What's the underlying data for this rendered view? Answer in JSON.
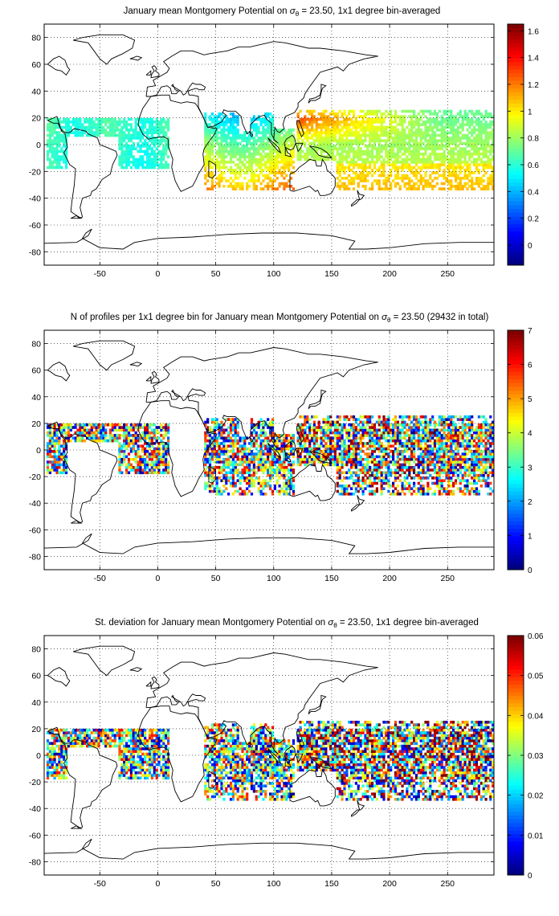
{
  "figure": {
    "background": "#ffffff",
    "colormap": "jet"
  },
  "chart_data": [
    {
      "type": "heatmap",
      "title_pre": "January mean Montgomery Potential on ",
      "title_symbol": "σ",
      "title_sub": "θ",
      "title_post": " = 23.50, 1x1 degree bin-averaged",
      "xlabel": "",
      "ylabel": "",
      "xlim": [
        -98,
        290
      ],
      "ylim": [
        -90,
        90
      ],
      "x_ticks": [
        -50,
        0,
        50,
        100,
        150,
        200,
        250
      ],
      "x_tick_labels": [
        "-50",
        "0",
        "50",
        "100",
        "150",
        "200",
        "250"
      ],
      "y_ticks": [
        -80,
        -60,
        -40,
        -20,
        0,
        20,
        40,
        60,
        80
      ],
      "y_tick_labels": [
        "-80",
        "-60",
        "-40",
        "-20",
        "0",
        "20",
        "40",
        "60",
        "80"
      ],
      "grid": true,
      "colorbar": {
        "clim": [
          -0.15,
          1.65
        ],
        "ticks": [
          0,
          0.2,
          0.4,
          0.6,
          0.8,
          1,
          1.2,
          1.4,
          1.6
        ],
        "tick_labels": [
          "0",
          "0.2",
          "0.4",
          "0.6",
          "0.8",
          "1",
          "1.2",
          "1.4",
          "1.6"
        ]
      },
      "field": "montgomery_potential"
    },
    {
      "type": "heatmap",
      "title_pre": "N of profiles per 1x1 degree bin for January mean Montgomery Potential on ",
      "title_symbol": "σ",
      "title_sub": "θ",
      "title_post": " = 23.50 (29432 in total)",
      "total_profiles": 29432,
      "xlabel": "",
      "ylabel": "",
      "xlim": [
        -98,
        290
      ],
      "ylim": [
        -90,
        90
      ],
      "x_ticks": [
        -50,
        0,
        50,
        100,
        150,
        200,
        250
      ],
      "x_tick_labels": [
        "-50",
        "0",
        "50",
        "100",
        "150",
        "200",
        "250"
      ],
      "y_ticks": [
        -80,
        -60,
        -40,
        -20,
        0,
        20,
        40,
        60,
        80
      ],
      "y_tick_labels": [
        "-80",
        "-60",
        "-40",
        "-20",
        "0",
        "20",
        "40",
        "60",
        "80"
      ],
      "grid": true,
      "colorbar": {
        "clim": [
          0,
          7
        ],
        "ticks": [
          0,
          1,
          2,
          3,
          4,
          5,
          6,
          7
        ],
        "tick_labels": [
          "0",
          "1",
          "2",
          "3",
          "4",
          "5",
          "6",
          "7"
        ]
      },
      "field": "profile_count"
    },
    {
      "type": "heatmap",
      "title_pre": "St. deviation for January mean Montgomery Potential on ",
      "title_symbol": "σ",
      "title_sub": "θ",
      "title_post": " = 23.50, 1x1 degree bin-averaged",
      "xlabel": "",
      "ylabel": "",
      "xlim": [
        -98,
        290
      ],
      "ylim": [
        -90,
        90
      ],
      "x_ticks": [
        -50,
        0,
        50,
        100,
        150,
        200,
        250
      ],
      "x_tick_labels": [
        "-50",
        "0",
        "50",
        "100",
        "150",
        "200",
        "250"
      ],
      "y_ticks": [
        -80,
        -60,
        -40,
        -20,
        0,
        20,
        40,
        60,
        80
      ],
      "y_tick_labels": [
        "-80",
        "-60",
        "-40",
        "-20",
        "0",
        "20",
        "40",
        "60",
        "80"
      ],
      "grid": true,
      "colorbar": {
        "clim": [
          0,
          0.06
        ],
        "ticks": [
          0,
          0.01,
          0.02,
          0.03,
          0.04,
          0.05,
          0.06
        ],
        "tick_labels": [
          "0",
          "0.01",
          "0.02",
          "0.03",
          "0.04",
          "0.05",
          "0.06"
        ]
      },
      "field": "standard_deviation"
    }
  ]
}
